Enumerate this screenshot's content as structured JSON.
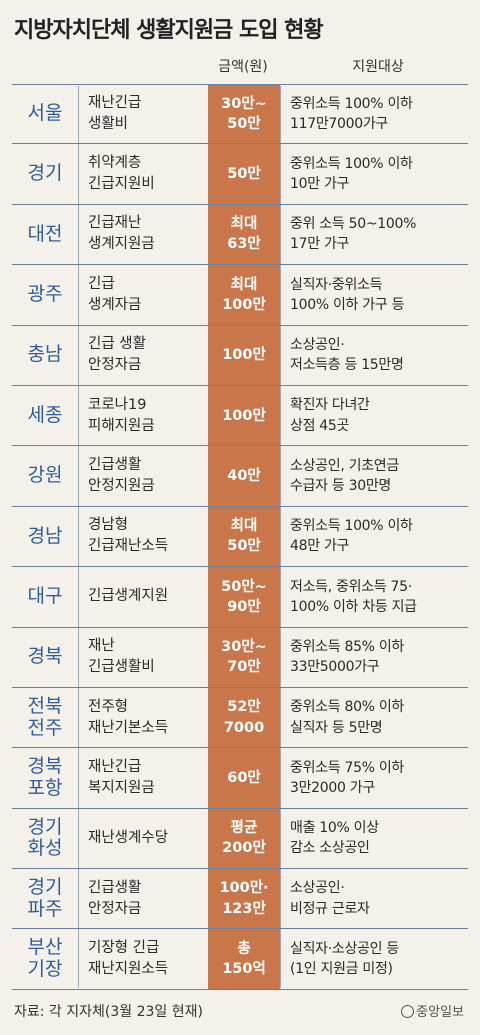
{
  "title": "지방자치단체 생활지원금 도입 현황",
  "header": {
    "amount": "금액(원)",
    "target": "지원대상"
  },
  "rows": [
    {
      "region": "서울",
      "name": "재난긴급\n생활비",
      "amount": "30만~\n50만",
      "target": "중위소득 100% 이하\n117만7000가구"
    },
    {
      "region": "경기",
      "name": "취약계층\n긴급지원비",
      "amount": "50만",
      "target": "중위소득 100% 이하\n10만 가구"
    },
    {
      "region": "대전",
      "name": "긴급재난\n생계지원금",
      "amount": "최대\n63만",
      "target": "중위 소득 50~100%\n17만 가구"
    },
    {
      "region": "광주",
      "name": "긴급\n생계자금",
      "amount": "최대\n100만",
      "target": "실직자·중위소득\n100% 이하 가구 등"
    },
    {
      "region": "충남",
      "name": "긴급 생활\n안정자금",
      "amount": "100만",
      "target": "소상공인·\n저소득층 등 15만명"
    },
    {
      "region": "세종",
      "name": "코로나19\n피해지원금",
      "amount": "100만",
      "target": "확진자 다녀간\n상점 45곳"
    },
    {
      "region": "강원",
      "name": "긴급생활\n안정지원금",
      "amount": "40만",
      "target": "소상공인, 기초연금\n수급자 등 30만명"
    },
    {
      "region": "경남",
      "name": "경남형\n긴급재난소득",
      "amount": "최대\n50만",
      "target": "중위소득 100% 이하\n48만 가구"
    },
    {
      "region": "대구",
      "name": "긴급생계지원",
      "amount": "50만~\n90만",
      "target": "저소득, 중위소득 75·\n100% 이하 차등 지급"
    },
    {
      "region": "경북",
      "name": "재난\n긴급생활비",
      "amount": "30만~\n70만",
      "target": "중위소득 85% 이하\n33만5000가구"
    },
    {
      "region": "전북\n전주",
      "name": "전주형\n재난기본소득",
      "amount": "52만\n7000",
      "target": "중위소득 80% 이하\n실직자 등 5만명"
    },
    {
      "region": "경북\n포항",
      "name": "재난긴급\n복지지원금",
      "amount": "60만",
      "target": "중위소득 75% 이하\n3만2000 가구"
    },
    {
      "region": "경기\n화성",
      "name": "재난생계수당",
      "amount": "평균\n200만",
      "target": "매출 10% 이상\n감소 소상공인"
    },
    {
      "region": "경기\n파주",
      "name": "긴급생활\n안정자금",
      "amount": "100만·\n123만",
      "target": "소상공인·\n비정규 근로자"
    },
    {
      "region": "부산\n기장",
      "name": "기장형 긴급\n재난지원소득",
      "amount": "총\n150억",
      "target": "실직자·소상공인 등\n(1인 지원금 미정)"
    }
  ],
  "footer": "자료: 각 지자체(3월 23일 현재)",
  "logo": "중앙일보",
  "colors": {
    "accent": "#c9774a",
    "region": "#2f5d9a",
    "background": "#f4f1ea"
  }
}
